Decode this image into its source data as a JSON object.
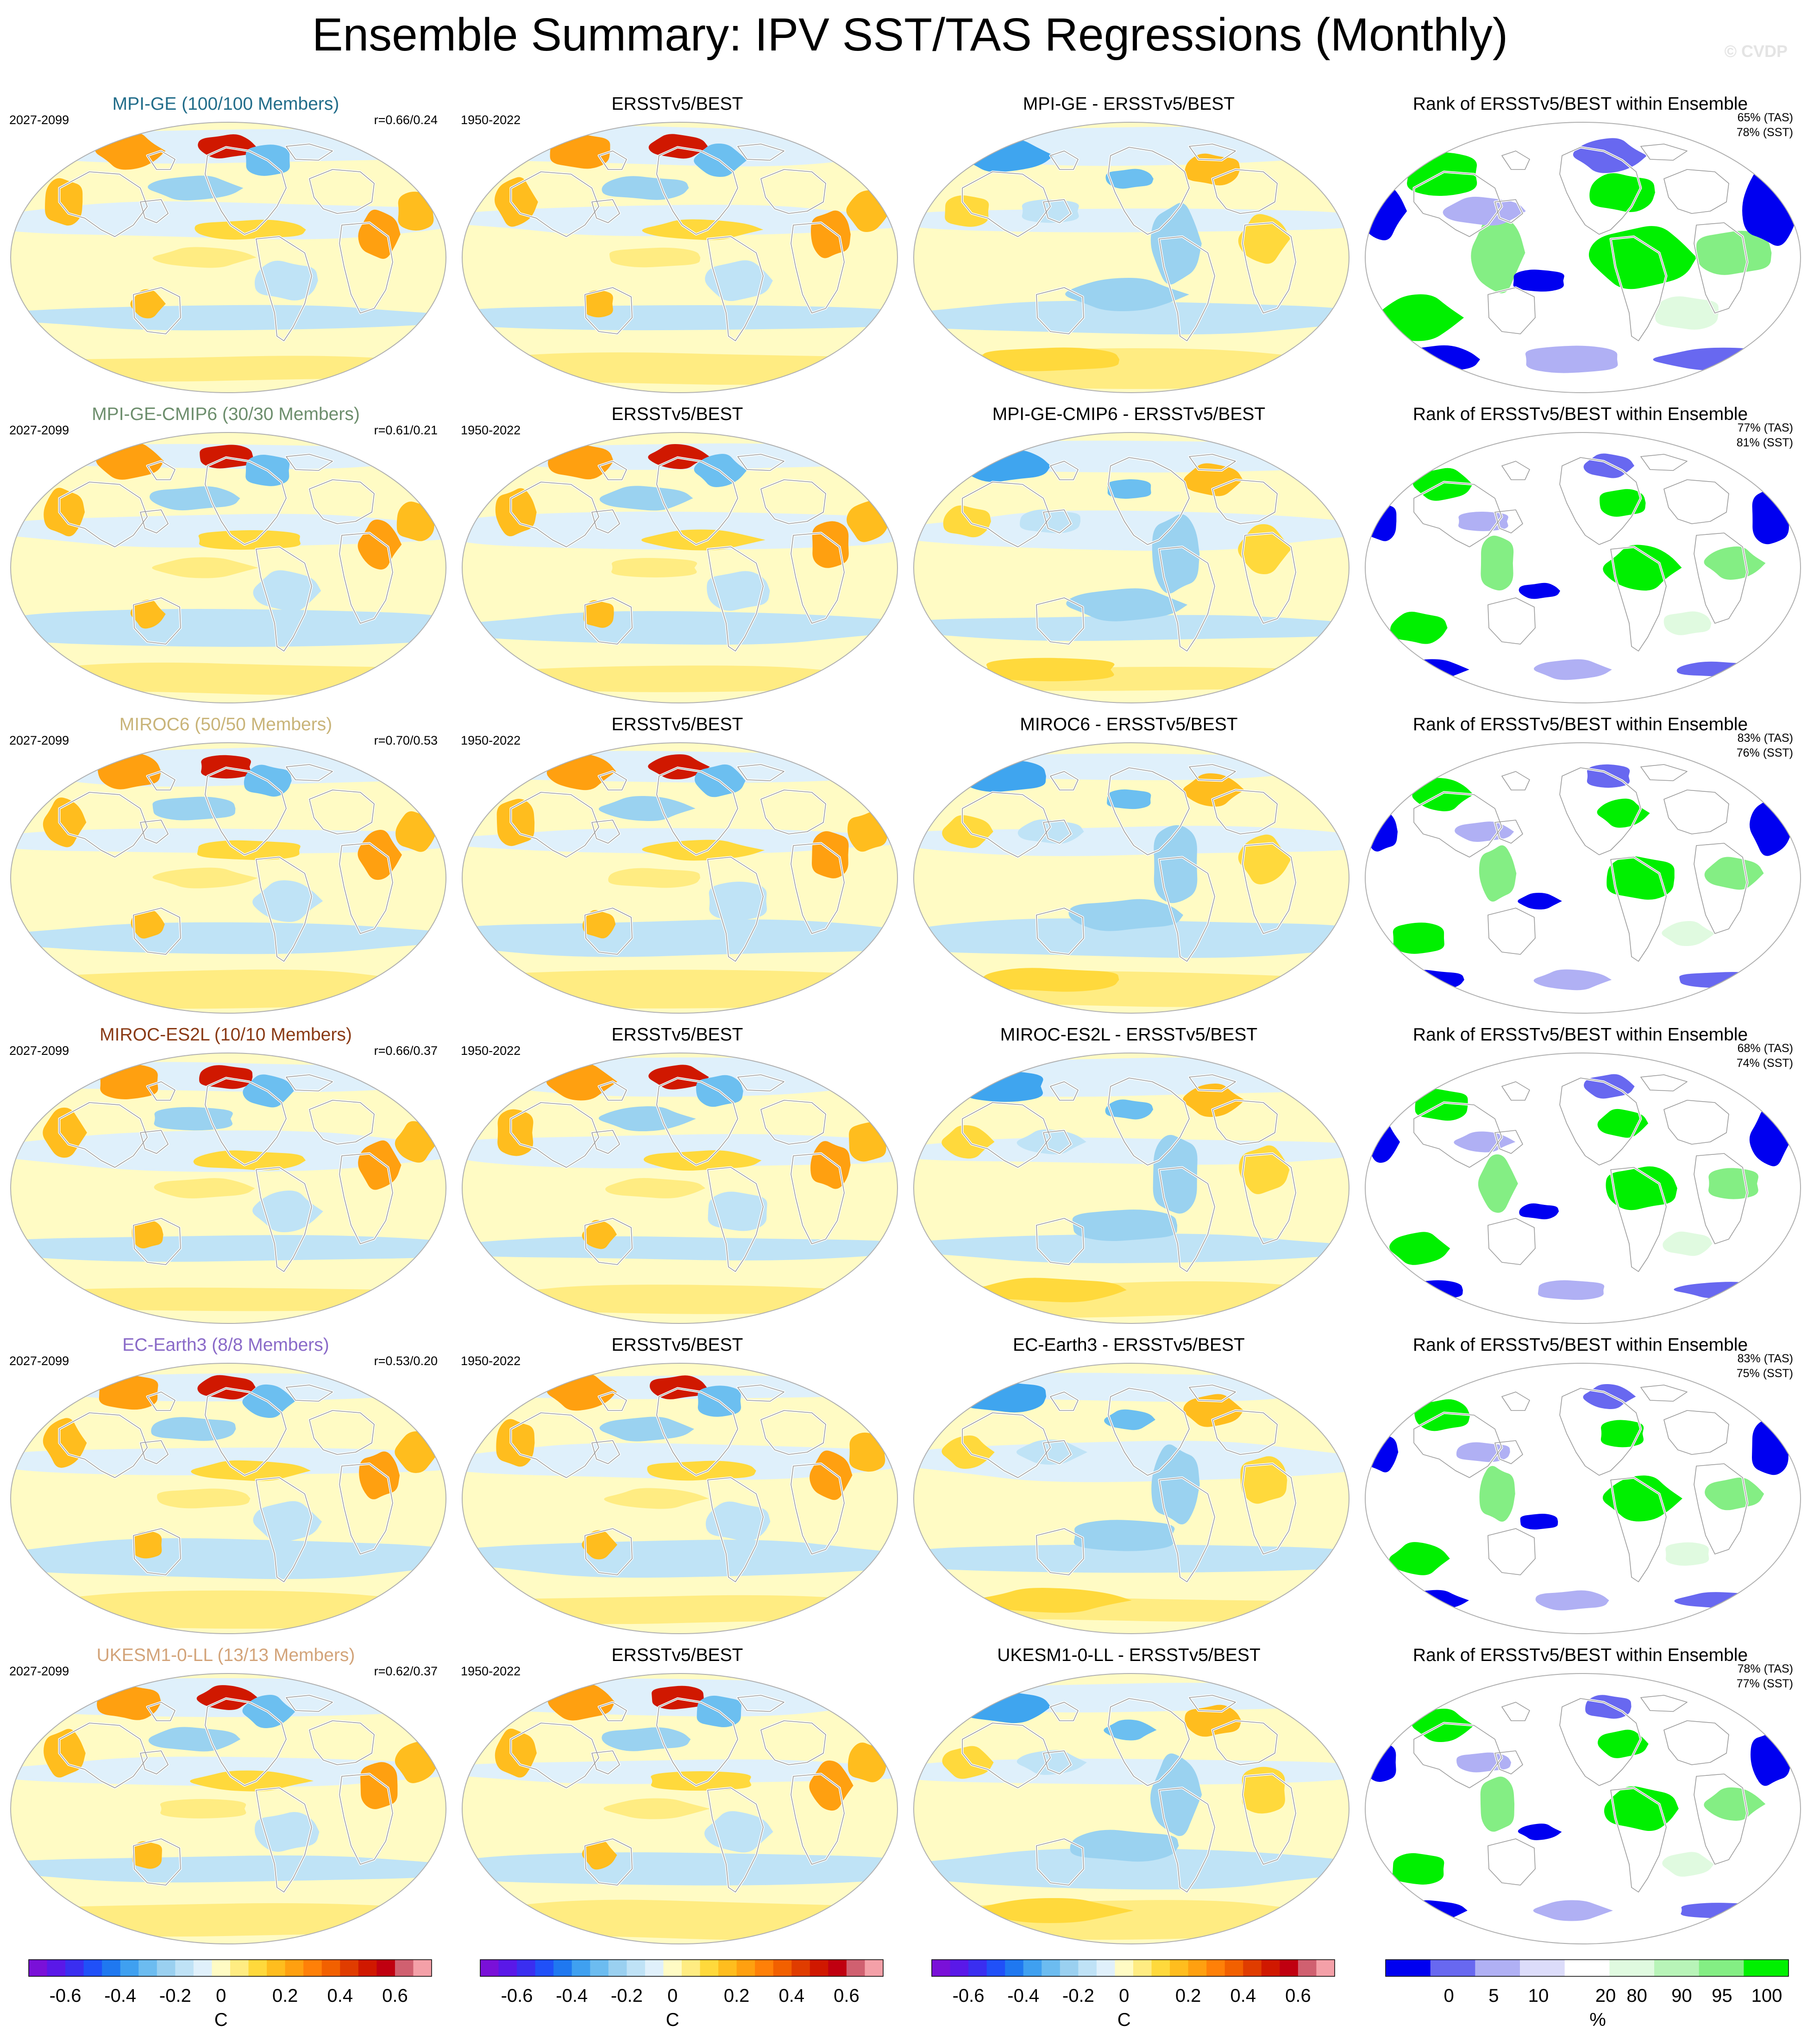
{
  "title": "Ensemble Summary: IPV SST/TAS Regressions (Monthly)",
  "watermark": "© CVDP",
  "colors": {
    "pos_levels": [
      "#fffbc4",
      "#ffec82",
      "#ffd93c",
      "#ffbd1e",
      "#ffa010",
      "#ff8008",
      "#f26000",
      "#e03c00",
      "#d01800",
      "#c00010"
    ],
    "neg_levels": [
      "#dff0fb",
      "#bfe3f6",
      "#9ad2f0",
      "#6cbff0",
      "#3fa5ef",
      "#1f80ef",
      "#2060ff",
      "#3040e8",
      "#5020d8",
      "#7010c8"
    ],
    "rank_low": [
      "#0000f0",
      "#6868f0",
      "#b0b0f4",
      "#dcdcfa"
    ],
    "rank_high": [
      "#e0fae0",
      "#b8f4b8",
      "#84ee84",
      "#00f000"
    ]
  },
  "rows": [
    {
      "model": "MPI-GE (100/100 Members)",
      "model_color": "#226d8a",
      "model_years": "2027-2099",
      "corr": "r=0.66/0.24",
      "obs_title": "ERSSTv5/BEST",
      "obs_years": "1950-2022",
      "diff_title": "MPI-GE - ERSSTv5/BEST",
      "rank_title": "Rank of ERSSTv5/BEST within Ensemble",
      "rank_tas": "65% (TAS)",
      "rank_sst": "78% (SST)"
    },
    {
      "model": "MPI-GE-CMIP6 (30/30 Members)",
      "model_color": "#6d8e6d",
      "model_years": "2027-2099",
      "corr": "r=0.61/0.21",
      "obs_title": "ERSSTv5/BEST",
      "obs_years": "1950-2022",
      "diff_title": "MPI-GE-CMIP6 - ERSSTv5/BEST",
      "rank_title": "Rank of ERSSTv5/BEST within Ensemble",
      "rank_tas": "77% (TAS)",
      "rank_sst": "81% (SST)"
    },
    {
      "model": "MIROC6 (50/50 Members)",
      "model_color": "#c9b479",
      "model_years": "2027-2099",
      "corr": "r=0.70/0.53",
      "obs_title": "ERSSTv5/BEST",
      "obs_years": "1950-2022",
      "diff_title": "MIROC6 - ERSSTv5/BEST",
      "rank_title": "Rank of ERSSTv5/BEST within Ensemble",
      "rank_tas": "83% (TAS)",
      "rank_sst": "76% (SST)"
    },
    {
      "model": "MIROC-ES2L (10/10 Members)",
      "model_color": "#8a3b16",
      "model_years": "2027-2099",
      "corr": "r=0.66/0.37",
      "obs_title": "ERSSTv5/BEST",
      "obs_years": "1950-2022",
      "diff_title": "MIROC-ES2L - ERSSTv5/BEST",
      "rank_title": "Rank of ERSSTv5/BEST within Ensemble",
      "rank_tas": "68% (TAS)",
      "rank_sst": "74% (SST)"
    },
    {
      "model": "EC-Earth3 (8/8 Members)",
      "model_color": "#8a6ac8",
      "model_years": "2027-2099",
      "corr": "r=0.53/0.20",
      "obs_title": "ERSSTv5/BEST",
      "obs_years": "1950-2022",
      "diff_title": "EC-Earth3 - ERSSTv5/BEST",
      "rank_title": "Rank of ERSSTv5/BEST within Ensemble",
      "rank_tas": "83% (TAS)",
      "rank_sst": "75% (SST)"
    },
    {
      "model": "UKESM1-0-LL (13/13 Members)",
      "model_color": "#d3a47a",
      "model_years": "2027-2099",
      "corr": "r=0.62/0.37",
      "obs_title": "ERSSTv5/BEST",
      "obs_years": "1950-2022",
      "diff_title": "UKESM1-0-LL - ERSSTv5/BEST",
      "rank_title": "Rank of ERSSTv5/BEST within Ensemble",
      "rank_tas": "78% (TAS)",
      "rank_sst": "77% (SST)"
    }
  ],
  "colorbars": [
    {
      "ticks": [
        "-0.6",
        "-0.4",
        "-0.2",
        "0",
        "0.2",
        "0.4",
        "0.6"
      ],
      "unit": "C",
      "colors": [
        "#7a10d8",
        "#5a18e8",
        "#3a2ef0",
        "#2050f8",
        "#1f78f0",
        "#3fa0f0",
        "#6cbcf0",
        "#9ad0f0",
        "#bfe2f6",
        "#e0f0fb",
        "#fffbc4",
        "#ffec82",
        "#ffd93c",
        "#ffbd1e",
        "#ffa010",
        "#ff8008",
        "#f26000",
        "#e03c00",
        "#d01800",
        "#c00010",
        "#d06070",
        "#f4a0a8"
      ]
    },
    {
      "ticks": [
        "-0.6",
        "-0.4",
        "-0.2",
        "0",
        "0.2",
        "0.4",
        "0.6"
      ],
      "unit": "C",
      "colors": [
        "#7a10d8",
        "#5a18e8",
        "#3a2ef0",
        "#2050f8",
        "#1f78f0",
        "#3fa0f0",
        "#6cbcf0",
        "#9ad0f0",
        "#bfe2f6",
        "#e0f0fb",
        "#fffbc4",
        "#ffec82",
        "#ffd93c",
        "#ffbd1e",
        "#ffa010",
        "#ff8008",
        "#f26000",
        "#e03c00",
        "#d01800",
        "#c00010",
        "#d06070",
        "#f4a0a8"
      ]
    },
    {
      "ticks": [
        "-0.6",
        "-0.4",
        "-0.2",
        "0",
        "0.2",
        "0.4",
        "0.6"
      ],
      "unit": "C",
      "colors": [
        "#7a10d8",
        "#5a18e8",
        "#3a2ef0",
        "#2050f8",
        "#1f78f0",
        "#3fa0f0",
        "#6cbcf0",
        "#9ad0f0",
        "#bfe2f6",
        "#e0f0fb",
        "#fffbc4",
        "#ffec82",
        "#ffd93c",
        "#ffbd1e",
        "#ffa010",
        "#ff8008",
        "#f26000",
        "#e03c00",
        "#d01800",
        "#c00010",
        "#d06070",
        "#f4a0a8"
      ]
    },
    {
      "ticks": [
        "0",
        "5",
        "10",
        "20",
        "80",
        "90",
        "95",
        "100"
      ],
      "unit": "%",
      "colors": [
        "#0000f0",
        "#6868f0",
        "#b0b0f4",
        "#dcdcfa",
        "#ffffff",
        "#e0fae0",
        "#b8f4b8",
        "#84ee84",
        "#00f000"
      ]
    }
  ]
}
